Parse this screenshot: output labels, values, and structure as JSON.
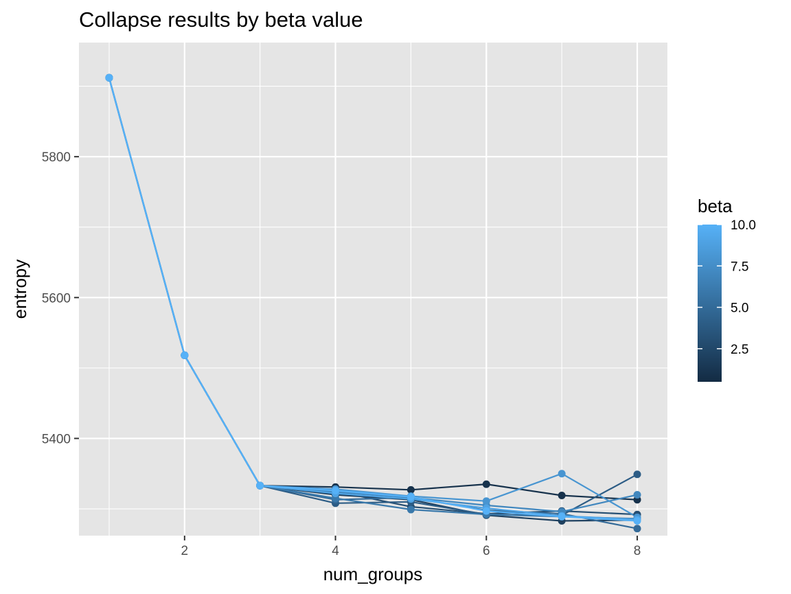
{
  "chart_data": {
    "type": "line",
    "title": "Collapse results by beta value",
    "xlabel": "num_groups",
    "ylabel": "entropy",
    "xlim": [
      0.6,
      8.4
    ],
    "ylim": [
      5262,
      5962
    ],
    "x_ticks": [
      2,
      4,
      6,
      8
    ],
    "y_ticks": [
      5400,
      5600,
      5800
    ],
    "grid": true,
    "legend": {
      "title": "beta",
      "placement": "right",
      "type": "colorbar",
      "range": [
        0.5,
        10
      ],
      "ticks": [
        2.5,
        5.0,
        7.5,
        10.0
      ],
      "tick_labels": [
        "2.5",
        "5.0",
        "7.5",
        "10.0"
      ],
      "low_color": "#132B43",
      "high_color": "#56B1F7"
    },
    "colors": {
      "panel": "#e5e5e5",
      "grid": "#ffffff",
      "low": "#132B43",
      "high": "#56B1F7"
    },
    "x": [
      1,
      2,
      3,
      4,
      5,
      6,
      7,
      8
    ],
    "series": [
      {
        "beta": 1,
        "values": [
          5912,
          5518,
          5333,
          5331,
          5327,
          5335,
          5319,
          5313
        ]
      },
      {
        "beta": 2,
        "values": [
          5912,
          5518,
          5333,
          5320,
          5313,
          5291,
          5283,
          5284
        ]
      },
      {
        "beta": 3,
        "values": [
          5912,
          5518,
          5333,
          5325,
          5303,
          5293,
          5297,
          5292
        ]
      },
      {
        "beta": 4,
        "values": [
          5912,
          5518,
          5333,
          5308,
          5310,
          5292,
          5291,
          5349
        ]
      },
      {
        "beta": 5,
        "values": [
          5912,
          5518,
          5333,
          5313,
          5316,
          5298,
          5293,
          5272
        ]
      },
      {
        "beta": 6,
        "values": [
          5912,
          5518,
          5333,
          5315,
          5299,
          5292,
          5289,
          5286
        ]
      },
      {
        "beta": 7,
        "values": [
          5912,
          5518,
          5333,
          5324,
          5316,
          5305,
          5296,
          5320
        ]
      },
      {
        "beta": 8,
        "values": [
          5912,
          5518,
          5333,
          5328,
          5318,
          5311,
          5350,
          5288
        ]
      },
      {
        "beta": 9,
        "values": [
          5912,
          5518,
          5333,
          5322,
          5314,
          5301,
          5290,
          5285
        ]
      },
      {
        "beta": 10,
        "values": [
          5912,
          5518,
          5333,
          5326,
          5317,
          5297,
          5289,
          5283
        ]
      }
    ]
  }
}
